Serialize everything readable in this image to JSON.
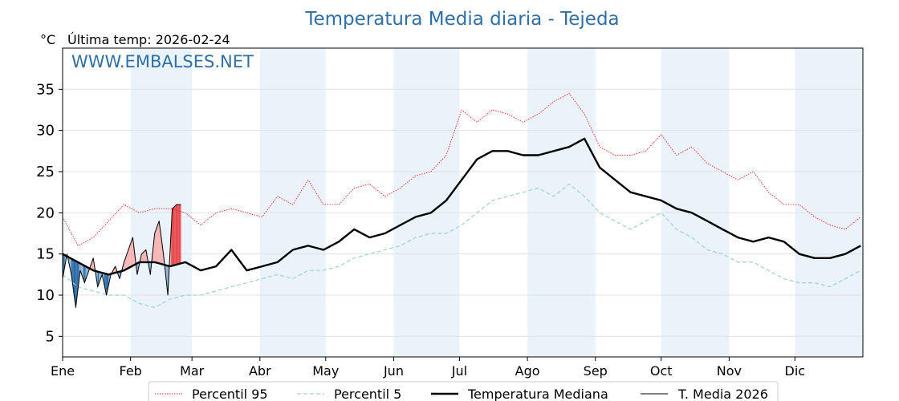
{
  "chart_data": {
    "type": "line",
    "title": "Temperatura Media diaria - Tejeda",
    "unit_label": "°C",
    "last_temp_label": "Última temp: 2026-02-24",
    "watermark": "WWW.EMBALSES.NET",
    "xlabel": "",
    "ylabel": "°C",
    "ylim": [
      2.5,
      40
    ],
    "xlim": [
      1,
      366
    ],
    "grid": true,
    "yticks": [
      5,
      10,
      15,
      20,
      25,
      30,
      35
    ],
    "month_ticks": [
      {
        "label": "Ene",
        "day": 1
      },
      {
        "label": "Feb",
        "day": 32
      },
      {
        "label": "Mar",
        "day": 60
      },
      {
        "label": "Abr",
        "day": 91
      },
      {
        "label": "May",
        "day": 121
      },
      {
        "label": "Jun",
        "day": 152
      },
      {
        "label": "Jul",
        "day": 182
      },
      {
        "label": "Ago",
        "day": 213
      },
      {
        "label": "Sep",
        "day": 244
      },
      {
        "label": "Oct",
        "day": 274
      },
      {
        "label": "Nov",
        "day": 305
      },
      {
        "label": "Dic",
        "day": 335
      }
    ],
    "shaded_months": [
      1,
      3,
      5,
      7,
      9,
      11
    ],
    "series": [
      {
        "name": "Percentil 95",
        "color": "#e8211e",
        "style": "dotted",
        "x": [
          1,
          8,
          15,
          22,
          29,
          36,
          43,
          50,
          57,
          64,
          71,
          78,
          85,
          92,
          99,
          106,
          113,
          120,
          127,
          134,
          141,
          148,
          155,
          162,
          169,
          176,
          183,
          190,
          197,
          204,
          211,
          218,
          225,
          232,
          239,
          246,
          253,
          260,
          267,
          274,
          281,
          288,
          295,
          302,
          309,
          316,
          323,
          330,
          337,
          344,
          351,
          358,
          365
        ],
        "values": [
          19.5,
          16,
          17,
          19,
          21,
          20,
          20.5,
          20.5,
          20,
          18.5,
          20,
          20.5,
          20,
          19.5,
          22,
          21,
          24,
          21,
          21,
          23,
          23.5,
          22,
          23,
          24.5,
          25,
          27,
          32.5,
          31,
          32.5,
          32,
          31,
          32,
          33.5,
          34.5,
          32,
          28,
          27,
          27,
          27.5,
          29.5,
          27,
          28,
          26,
          25,
          24,
          25,
          22.5,
          21,
          21,
          19.5,
          18.5,
          18,
          19.5
        ]
      },
      {
        "name": "Percentil 5",
        "color": "#9ecfe0",
        "style": "dashed",
        "x": [
          1,
          8,
          15,
          22,
          29,
          36,
          43,
          50,
          57,
          64,
          71,
          78,
          85,
          92,
          99,
          106,
          113,
          120,
          127,
          134,
          141,
          148,
          155,
          162,
          169,
          176,
          183,
          190,
          197,
          204,
          211,
          218,
          225,
          232,
          239,
          246,
          253,
          260,
          267,
          274,
          281,
          288,
          295,
          302,
          309,
          316,
          323,
          330,
          337,
          344,
          351,
          358,
          365
        ],
        "values": [
          12.5,
          11,
          10.5,
          10,
          10,
          9,
          8.5,
          9.5,
          10,
          10,
          10.5,
          11,
          11.5,
          12,
          12.5,
          12,
          13,
          13,
          13.5,
          14.5,
          15,
          15.5,
          16,
          17,
          17.5,
          17.5,
          18.5,
          20,
          21.5,
          22,
          22.5,
          23,
          22,
          23.5,
          22,
          20,
          19,
          18,
          19,
          20,
          18,
          17,
          15.5,
          15,
          14,
          14,
          13,
          12,
          11.5,
          11.5,
          11,
          12,
          13
        ]
      },
      {
        "name": "Temperatura Mediana",
        "color": "#000000",
        "style": "solid-thick",
        "x": [
          1,
          8,
          15,
          22,
          29,
          36,
          43,
          50,
          57,
          64,
          71,
          78,
          85,
          92,
          99,
          106,
          113,
          120,
          127,
          134,
          141,
          148,
          155,
          162,
          169,
          176,
          183,
          190,
          197,
          204,
          211,
          218,
          225,
          232,
          239,
          246,
          253,
          260,
          267,
          274,
          281,
          288,
          295,
          302,
          309,
          316,
          323,
          330,
          337,
          344,
          351,
          358,
          365
        ],
        "values": [
          15,
          14,
          13,
          12.5,
          13,
          14,
          14,
          13.5,
          14,
          13,
          13.5,
          15.5,
          13,
          13.5,
          14,
          15.5,
          16,
          15.5,
          16.5,
          18,
          17,
          17.5,
          18.5,
          19.5,
          20,
          21.5,
          24,
          26.5,
          27.5,
          27.5,
          27,
          27,
          27.5,
          28,
          29,
          25.5,
          24,
          22.5,
          22,
          21.5,
          20.5,
          20,
          19,
          18,
          17,
          16.5,
          17,
          16.5,
          15,
          14.5,
          14.5,
          15,
          16
        ]
      },
      {
        "name": "T. Media 2026",
        "color": "#000000",
        "style": "solid-thin",
        "x": [
          1,
          3,
          5,
          7,
          9,
          11,
          13,
          15,
          17,
          19,
          21,
          23,
          25,
          27,
          29,
          31,
          33,
          35,
          37,
          39,
          41,
          43,
          45,
          47,
          49,
          51,
          53,
          55
        ],
        "values": [
          12,
          15,
          12.5,
          8.5,
          13,
          11.5,
          13,
          14.5,
          11,
          12.5,
          10,
          12.5,
          13.5,
          12,
          14,
          15.5,
          17,
          12.5,
          15,
          15.5,
          12.5,
          17.5,
          19,
          15,
          10,
          20.5,
          21,
          21
        ]
      }
    ],
    "legend": [
      "Percentil 95",
      "Percentil 5",
      "Temperatura Mediana",
      "T. Media 2026"
    ],
    "legend_position": "bottom-center",
    "colors": {
      "title": "#2e6fa8",
      "watermark": "#2e6fa8",
      "shade": "#eaf2fa",
      "grid": "#e3e3e3",
      "above_fill_light": "#f6b4b2",
      "above_fill_dark": "#e8484a",
      "below_fill_light": "#8fb2d2",
      "below_fill_dark": "#2a6aa6"
    }
  }
}
